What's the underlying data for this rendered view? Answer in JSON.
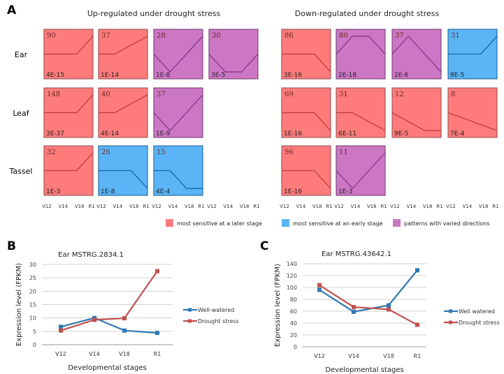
{
  "panel_a": {
    "label": "A",
    "group_titles": [
      "Up-regulated under drought stress",
      "Down-regulated under drought stress"
    ],
    "row_labels": [
      "Ear",
      "Leaf",
      "Tassel"
    ],
    "stages": [
      "V12",
      "V14",
      "V18",
      "R1"
    ],
    "category_colors": {
      "later": "#fd7b7b",
      "early": "#5ab4f6",
      "varied": "#cc77c4"
    },
    "legend": [
      {
        "category": "later",
        "label": "most sensitive at a later stage"
      },
      {
        "category": "early",
        "label": "most sensitive at an early stage"
      },
      {
        "category": "varied",
        "label": "patterns with varied directions"
      }
    ],
    "profiles": [
      {
        "group": 0,
        "row": 0,
        "col": 0,
        "count": "90",
        "pvalue": "4E-15",
        "category": "later",
        "profile": [
          0,
          0,
          0,
          1
        ]
      },
      {
        "group": 0,
        "row": 0,
        "col": 1,
        "count": "37",
        "pvalue": "1E-14",
        "category": "later",
        "profile": [
          0,
          0,
          0.5,
          1
        ]
      },
      {
        "group": 0,
        "row": 0,
        "col": 2,
        "count": "28",
        "pvalue": "1E-8",
        "category": "varied",
        "profile": [
          0,
          -1,
          0,
          1
        ]
      },
      {
        "group": 0,
        "row": 0,
        "col": 3,
        "count": "30",
        "pvalue": "3E-5",
        "category": "varied",
        "profile": [
          0,
          -1,
          -1,
          0
        ]
      },
      {
        "group": 0,
        "row": 1,
        "col": 0,
        "count": "148",
        "pvalue": "3E-37",
        "category": "later",
        "profile": [
          0,
          0,
          0,
          1
        ]
      },
      {
        "group": 0,
        "row": 1,
        "col": 1,
        "count": "40",
        "pvalue": "4E-14",
        "category": "later",
        "profile": [
          0,
          0,
          0.5,
          1
        ]
      },
      {
        "group": 0,
        "row": 1,
        "col": 2,
        "count": "37",
        "pvalue": "1E-9",
        "category": "varied",
        "profile": [
          0,
          -1,
          0,
          1
        ]
      },
      {
        "group": 0,
        "row": 2,
        "col": 0,
        "count": "32",
        "pvalue": "1E-3",
        "category": "later",
        "profile": [
          0,
          0,
          0,
          1
        ]
      },
      {
        "group": 0,
        "row": 2,
        "col": 1,
        "count": "26",
        "pvalue": "1E-8",
        "category": "early",
        "profile": [
          0,
          0,
          0,
          -1
        ]
      },
      {
        "group": 0,
        "row": 2,
        "col": 2,
        "count": "15",
        "pvalue": "4E-4",
        "category": "early",
        "profile": [
          0,
          0,
          -1,
          -1
        ]
      },
      {
        "group": 1,
        "row": 0,
        "col": 0,
        "count": "86",
        "pvalue": "3E-16",
        "category": "later",
        "profile": [
          0,
          0,
          0,
          -1
        ]
      },
      {
        "group": 1,
        "row": 0,
        "col": 1,
        "count": "80",
        "pvalue": "2E-18",
        "category": "varied",
        "profile": [
          0,
          1,
          1,
          0
        ]
      },
      {
        "group": 1,
        "row": 0,
        "col": 2,
        "count": "37",
        "pvalue": "2E-6",
        "category": "varied",
        "profile": [
          0,
          1,
          0,
          -1
        ]
      },
      {
        "group": 1,
        "row": 0,
        "col": 3,
        "count": "31",
        "pvalue": "8E-5",
        "category": "early",
        "profile": [
          0,
          0,
          0,
          1
        ]
      },
      {
        "group": 1,
        "row": 1,
        "col": 0,
        "count": "69",
        "pvalue": "1E-16",
        "category": "later",
        "profile": [
          0,
          0,
          0,
          -1
        ]
      },
      {
        "group": 1,
        "row": 1,
        "col": 1,
        "count": "31",
        "pvalue": "6E-11",
        "category": "later",
        "profile": [
          0,
          0,
          -0.5,
          -1
        ]
      },
      {
        "group": 1,
        "row": 1,
        "col": 2,
        "count": "12",
        "pvalue": "9E-5",
        "category": "later",
        "profile": [
          0,
          -0.5,
          -1,
          -1
        ]
      },
      {
        "group": 1,
        "row": 1,
        "col": 3,
        "count": "8",
        "pvalue": "7E-4",
        "category": "later",
        "profile": [
          0,
          -0.33,
          -0.67,
          -1
        ]
      },
      {
        "group": 1,
        "row": 2,
        "col": 0,
        "count": "96",
        "pvalue": "1E-16",
        "category": "later",
        "profile": [
          0,
          0,
          0,
          -1
        ]
      },
      {
        "group": 1,
        "row": 2,
        "col": 1,
        "count": "11",
        "pvalue": "1E-3",
        "category": "varied",
        "profile": [
          0,
          -1,
          0,
          1
        ]
      }
    ]
  },
  "chart_data": [
    {
      "panel": "B",
      "type": "line",
      "title": "Ear MSTRG.2834.1",
      "xlabel": "Developmental stages",
      "ylabel": "Expression level (FPKM)",
      "categories": [
        "V12",
        "V14",
        "V18",
        "R1"
      ],
      "ylim": [
        0,
        30
      ],
      "yticks": [
        "0",
        "5",
        "10",
        "15",
        "20",
        "25",
        "30"
      ],
      "grid": true,
      "legend": "right",
      "series": [
        {
          "name": "Well-watered",
          "color": "#2f78b4",
          "values": [
            6.7,
            10.0,
            5.3,
            4.4
          ]
        },
        {
          "name": "Drought stress",
          "color": "#c0504d",
          "values": [
            5.3,
            9.3,
            9.9,
            27.5
          ]
        }
      ]
    },
    {
      "panel": "C",
      "type": "line",
      "title": "Ear MSTRG.43642.1",
      "xlabel": "Developmental stages",
      "ylabel": "Expression level (FPKM)",
      "categories": [
        "V12",
        "V14",
        "V18",
        "R1"
      ],
      "ylim": [
        0,
        140
      ],
      "yticks": [
        "0",
        "20",
        "40",
        "60",
        "80",
        "100",
        "120",
        "140"
      ],
      "grid": true,
      "legend": "right",
      "series": [
        {
          "name": "Well watered",
          "color": "#2f78b4",
          "values": [
            96,
            59,
            70,
            129
          ]
        },
        {
          "name": "Drought stress",
          "color": "#c0504d",
          "values": [
            104,
            67,
            63,
            37
          ]
        }
      ]
    }
  ]
}
